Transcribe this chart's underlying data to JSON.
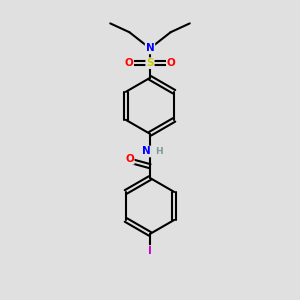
{
  "background_color": "#e0e0e0",
  "bond_color": "#000000",
  "atom_colors": {
    "N": "#0000ff",
    "O": "#ff0000",
    "S": "#cccc00",
    "I": "#cc00cc",
    "H": "#7a9a9a",
    "C": "#000000"
  },
  "figsize": [
    3.0,
    3.0
  ],
  "dpi": 100
}
